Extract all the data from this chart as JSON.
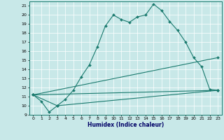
{
  "xlabel": "Humidex (Indice chaleur)",
  "background_color": "#c8e8e8",
  "line_color": "#1a7a6e",
  "xlim": [
    -0.5,
    23.5
  ],
  "ylim": [
    9,
    21.5
  ],
  "yticks": [
    9,
    10,
    11,
    12,
    13,
    14,
    15,
    16,
    17,
    18,
    19,
    20,
    21
  ],
  "xticks": [
    0,
    1,
    2,
    3,
    4,
    5,
    6,
    7,
    8,
    9,
    10,
    11,
    12,
    13,
    14,
    15,
    16,
    17,
    18,
    19,
    20,
    21,
    22,
    23
  ],
  "series": [
    {
      "x": [
        0,
        1,
        2,
        3,
        4,
        5,
        6,
        7,
        8,
        9,
        10,
        11,
        12,
        13,
        14,
        15,
        16,
        17,
        18,
        19,
        20,
        21,
        22,
        23
      ],
      "y": [
        11.2,
        10.5,
        9.3,
        10.0,
        10.7,
        11.7,
        13.2,
        14.5,
        16.5,
        18.8,
        20.0,
        19.5,
        19.2,
        19.8,
        20.0,
        21.2,
        20.5,
        19.3,
        18.3,
        17.0,
        15.3,
        14.3,
        11.8,
        11.7
      ]
    },
    {
      "x": [
        0,
        3,
        23
      ],
      "y": [
        11.2,
        10.0,
        11.7
      ]
    },
    {
      "x": [
        0,
        23
      ],
      "y": [
        11.2,
        15.3
      ]
    },
    {
      "x": [
        0,
        23
      ],
      "y": [
        11.2,
        11.7
      ]
    }
  ]
}
